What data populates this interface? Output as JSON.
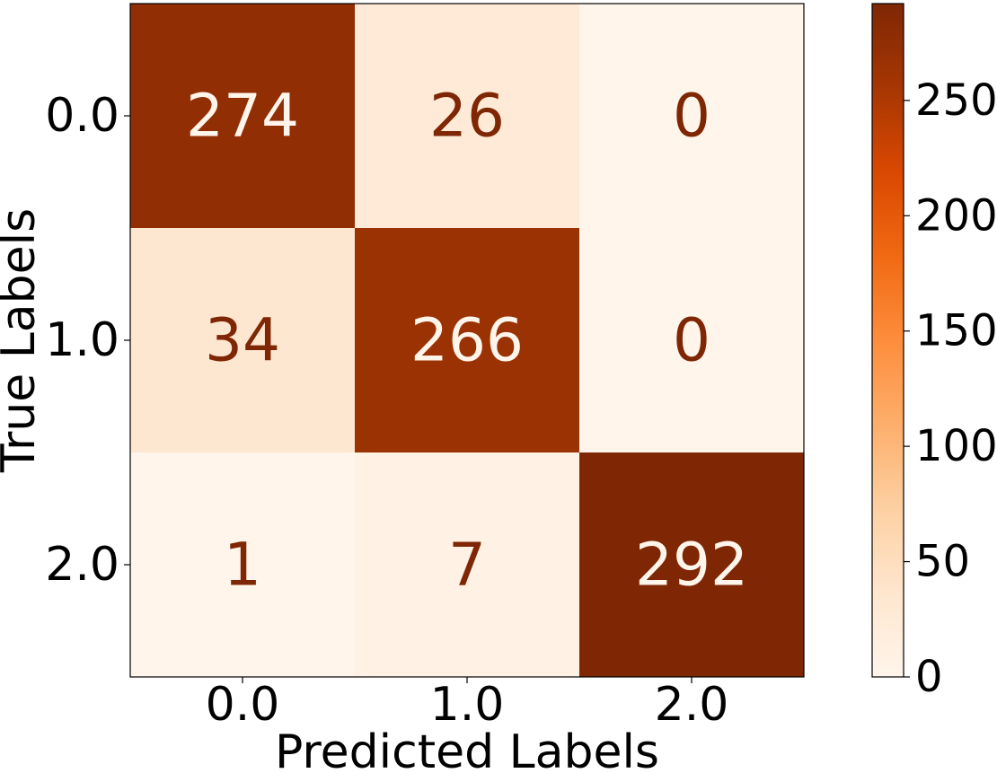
{
  "chart_data": {
    "type": "heatmap",
    "title": "",
    "xlabel": "Predicted Labels",
    "ylabel": "True Labels",
    "x_categories": [
      "0.0",
      "1.0",
      "2.0"
    ],
    "y_categories": [
      "0.0",
      "1.0",
      "2.0"
    ],
    "values": [
      [
        274,
        26,
        0
      ],
      [
        34,
        266,
        0
      ],
      [
        1,
        7,
        292
      ]
    ],
    "colormap": "Oranges",
    "color_range": [
      0,
      292
    ],
    "colorbar_ticks": [
      0,
      50,
      100,
      150,
      200,
      250
    ],
    "grid": false,
    "colorbar_position": "right"
  }
}
